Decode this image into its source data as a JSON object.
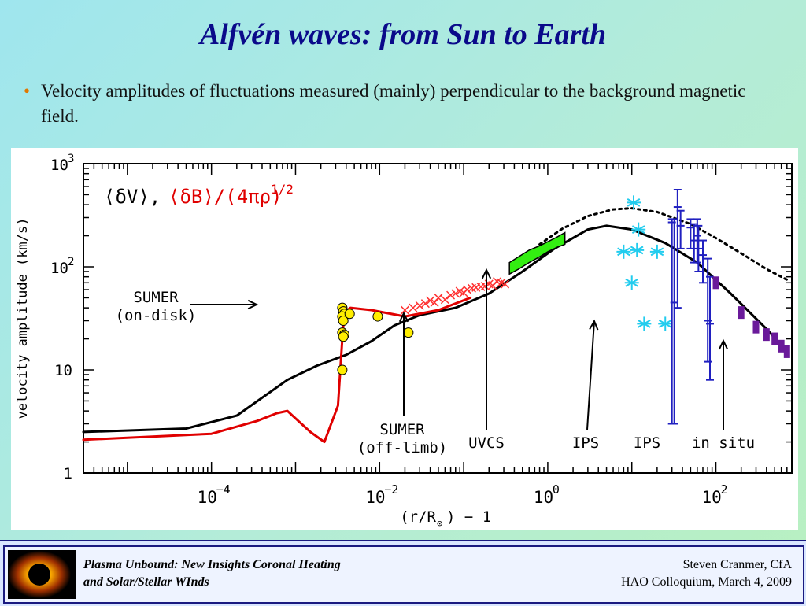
{
  "slide": {
    "title": "Alfvén waves:  from Sun to Earth",
    "bullet": "Velocity amplitudes of fluctuations measured (mainly) perpendicular to the background magnetic field."
  },
  "footer": {
    "left_line1": "Plasma Unbound:  New Insights Coronal Heating",
    "left_line2": "and Solar/Stellar WInds",
    "right_line1": "Steven Cranmer,  CfA",
    "right_line2": "HAO Colloquium, March 4, 2009"
  },
  "colors": {
    "title": "#0a0a8a",
    "bullet_marker": "#e07800",
    "model_black": "#000000",
    "model_red": "#e00000",
    "sumer_disk": "#ffee00",
    "sumer_offlimb": "#ff3030",
    "uvcs": "#33ee11",
    "ips_stars": "#22ccee",
    "ips_bars": "#2020c0",
    "in_situ": "#6a1a9a"
  },
  "chart_data": {
    "type": "line",
    "title": "",
    "legend_text": "⟨δV⟩,",
    "legend_text_red": "⟨δB⟩/(4πρ)",
    "legend_exp": "1/2",
    "xlabel": "(r/R",
    "xlabel_sub": "⊙",
    "xlabel_tail": ") − 1",
    "ylabel": "velocity amplitude (km/s)",
    "xscale": "log",
    "yscale": "log",
    "xlim": [
      3e-06,
      800
    ],
    "ylim": [
      1,
      1000
    ],
    "x_ticks": [
      {
        "base": "10",
        "exp": "−4",
        "value": 0.0001
      },
      {
        "base": "10",
        "exp": "−2",
        "value": 0.01
      },
      {
        "base": "10",
        "exp": "0",
        "value": 1
      },
      {
        "base": "10",
        "exp": "2",
        "value": 100
      }
    ],
    "y_ticks": [
      {
        "base": "1",
        "exp": "",
        "value": 1
      },
      {
        "base": "10",
        "exp": "",
        "value": 10
      },
      {
        "base": "10",
        "exp": "2",
        "value": 100
      },
      {
        "base": "10",
        "exp": "3",
        "value": 1000
      }
    ],
    "series": [
      {
        "kind": "line",
        "color": "#000000",
        "x": [
          3e-06,
          5e-05,
          0.0002,
          0.0008,
          0.0018,
          0.004,
          0.008,
          0.015,
          0.03,
          0.08,
          0.2,
          0.5,
          1.2,
          3,
          5,
          10,
          25,
          60,
          150,
          400,
          700
        ],
        "y": [
          2.5,
          2.7,
          3.6,
          8,
          11,
          14,
          19,
          27,
          34,
          40,
          55,
          90,
          150,
          230,
          250,
          230,
          170,
          110,
          55,
          25,
          15
        ]
      },
      {
        "kind": "line",
        "color": "#000000",
        "dash": true,
        "x": [
          0.8,
          1.5,
          3,
          6,
          10,
          20,
          50,
          100,
          200,
          400,
          700
        ],
        "y": [
          165,
          235,
          310,
          360,
          370,
          340,
          260,
          190,
          135,
          95,
          75
        ]
      },
      {
        "kind": "line",
        "color": "#e00000",
        "x": [
          3e-06,
          0.0001,
          0.00035,
          0.0006,
          0.0008,
          0.0015,
          0.0022,
          0.0032,
          0.0036,
          0.0038,
          0.0045,
          0.008,
          0.02,
          0.05,
          0.12
        ],
        "y": [
          2.1,
          2.4,
          3.2,
          3.8,
          4.0,
          2.5,
          2.0,
          4.5,
          20,
          36,
          40,
          38,
          33,
          38,
          50
        ]
      },
      {
        "kind": "points",
        "marker": "circle",
        "name": "SUMER (on-disk)",
        "x": [
          0.0036,
          0.0037,
          0.0038,
          0.0036,
          0.0037,
          0.0036,
          0.0038,
          0.0037,
          0.0036,
          0.0044,
          0.0095,
          0.022
        ],
        "y": [
          40,
          37,
          35,
          33,
          30,
          23,
          22,
          21,
          10,
          35,
          33,
          23
        ]
      },
      {
        "kind": "points",
        "marker": "x",
        "name": "SUMER (off-limb)",
        "x": [
          0.02,
          0.025,
          0.03,
          0.035,
          0.04,
          0.045,
          0.05,
          0.06,
          0.07,
          0.08,
          0.09,
          0.1,
          0.11,
          0.125,
          0.14,
          0.16,
          0.18,
          0.2,
          0.22,
          0.25,
          0.28,
          0.31
        ],
        "y": [
          38,
          40,
          42,
          44,
          47,
          45,
          50,
          48,
          53,
          55,
          58,
          56,
          60,
          62,
          63,
          64,
          65,
          68,
          66,
          72,
          70,
          68
        ]
      },
      {
        "kind": "band",
        "name": "UVCS",
        "x": [
          0.35,
          0.45,
          0.6,
          0.8,
          1.0,
          1.3,
          1.6
        ],
        "y_low": [
          85,
          95,
          110,
          125,
          140,
          155,
          165
        ],
        "y_high": [
          110,
          125,
          145,
          160,
          175,
          195,
          215
        ]
      },
      {
        "kind": "points",
        "marker": "star",
        "name": "IPS (g)",
        "x": [
          10.5,
          12,
          11.5,
          8,
          20,
          10,
          14,
          25
        ],
        "y": [
          420,
          230,
          145,
          140,
          140,
          70,
          28,
          28
        ]
      },
      {
        "kind": "errorbars",
        "name": "IPS (bars)",
        "x": [
          30,
          32,
          35,
          38,
          50,
          55,
          60,
          62,
          70,
          80,
          85
        ],
        "y": [
          270,
          45,
          380,
          250,
          240,
          180,
          200,
          150,
          130,
          30,
          28
        ],
        "y_low": [
          3,
          3,
          40,
          150,
          150,
          110,
          110,
          90,
          70,
          12,
          8
        ],
        "y_high": [
          290,
          290,
          560,
          350,
          290,
          260,
          290,
          250,
          180,
          120,
          80
        ]
      },
      {
        "kind": "points",
        "marker": "square",
        "name": "in situ",
        "x": [
          100,
          200,
          300,
          400,
          500,
          600,
          700
        ],
        "y": [
          70,
          36,
          26,
          22,
          20,
          17,
          15
        ]
      }
    ],
    "annotations": [
      {
        "text_lines": [
          "SUMER",
          "(on-disk)"
        ]
      },
      {
        "text_lines": [
          "SUMER",
          "(off-limb)"
        ]
      },
      {
        "text_lines": [
          "UVCS"
        ]
      },
      {
        "text_lines": [
          "IPS"
        ]
      },
      {
        "text_lines": [
          "IPS"
        ]
      },
      {
        "text_lines": [
          "in situ"
        ]
      }
    ]
  }
}
